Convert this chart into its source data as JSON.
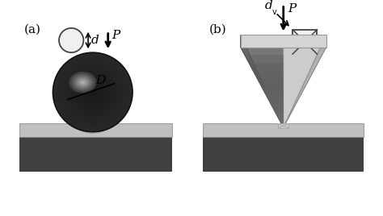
{
  "fig_width": 4.74,
  "fig_height": 2.68,
  "dpi": 100,
  "background": "#ffffff",
  "label_a": "(a)",
  "label_b": "(b)",
  "label_P": "P",
  "label_D": "D",
  "label_d": "d",
  "label_dv": "d",
  "label_v": "v",
  "dark_gray": "#404040",
  "light_gray": "#c0c0c0",
  "lighter_gray": "#d8d8d8"
}
